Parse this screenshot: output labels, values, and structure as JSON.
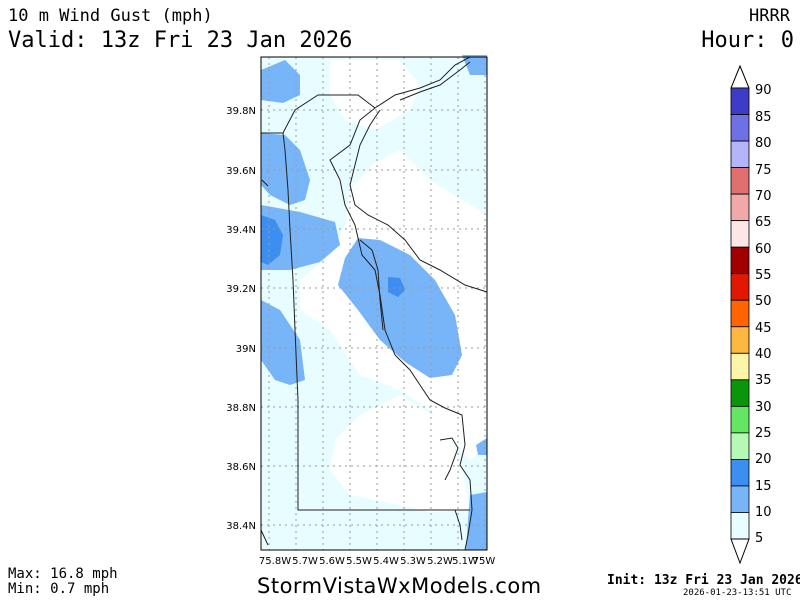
{
  "header": {
    "title": "10 m Wind Gust (mph)",
    "valid": "Valid: 13z Fri 23 Jan 2026",
    "model": "HRRR",
    "hour": "Hour: 0"
  },
  "stats": {
    "max": "Max: 16.8 mph",
    "min": "Min: 0.7 mph"
  },
  "footer": {
    "brand": "StormVistaWxModels.com",
    "init": "Init: 13z Fri 23 Jan 2026",
    "stamp": "2026-01-23-13:51 UTC"
  },
  "map": {
    "lat_labels": [
      "39.8N",
      "39.6N",
      "39.4N",
      "39.2N",
      "39N",
      "38.8N",
      "38.6N",
      "38.4N"
    ],
    "lon_labels": [
      "75.8W",
      "5.7W",
      "5.6W",
      "5.5W",
      "5.4W",
      "5.3W",
      "5.2W",
      "5.1W",
      "75W"
    ],
    "background": "#e8fdff"
  },
  "colorbar": {
    "labels": [
      "90",
      "85",
      "80",
      "75",
      "70",
      "65",
      "60",
      "55",
      "50",
      "45",
      "40",
      "35",
      "30",
      "25",
      "20",
      "15",
      "10",
      "5"
    ],
    "colors": [
      "#3c3cc8",
      "#7070e6",
      "#b4b4f8",
      "#e07070",
      "#f0a8a8",
      "#fce6e6",
      "#a00000",
      "#e01800",
      "#ff6400",
      "#fcb840",
      "#fcf4a8",
      "#0a960a",
      "#64e664",
      "#b4fab4",
      "#3c8ef0",
      "#78b4f8",
      "#e8fdff"
    ]
  }
}
